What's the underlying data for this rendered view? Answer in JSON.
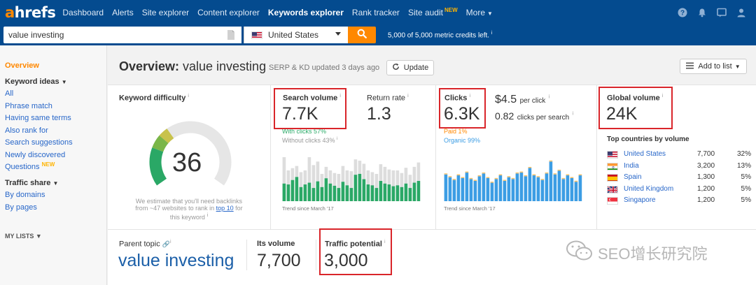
{
  "nav": {
    "logo_a": "a",
    "logo_rest": "hrefs",
    "items": [
      {
        "label": "Dashboard"
      },
      {
        "label": "Alerts"
      },
      {
        "label": "Site explorer"
      },
      {
        "label": "Content explorer"
      },
      {
        "label": "Keywords explorer",
        "active": true
      },
      {
        "label": "Rank tracker"
      },
      {
        "label": "Site audit",
        "badge": "NEW"
      },
      {
        "label": "More"
      }
    ],
    "icons": [
      "help-icon",
      "bell-icon",
      "chat-icon",
      "account-icon"
    ]
  },
  "search": {
    "value": "value investing",
    "country": "United States",
    "credits": "5,000 of 5,000 metric credits left.",
    "credits_info": "i"
  },
  "sidebar": {
    "overview": "Overview",
    "keyword_ideas": "Keyword ideas",
    "ideas": [
      "All",
      "Phrase match",
      "Having same terms",
      "Also rank for",
      "Search suggestions",
      "Newly discovered"
    ],
    "questions": "Questions",
    "questions_badge": "NEW",
    "traffic_share": "Traffic share",
    "traffic": [
      "By domains",
      "By pages"
    ],
    "my_lists": "MY LISTS"
  },
  "overview": {
    "title": "Overview:",
    "keyword": "value investing",
    "updated": "SERP & KD updated 3 days ago",
    "update_label": "Update",
    "add_to_list": "Add to list"
  },
  "kd": {
    "label": "Keyword difficulty",
    "info": "i",
    "value": "36",
    "value_num": 36,
    "note_1": "We estimate that you'll need backlinks",
    "note_2a": "from ~47 websites to rank in ",
    "note_link": "top 10",
    "note_2b": " for",
    "note_3": "this keyword",
    "note_info": "i"
  },
  "search_volume": {
    "label": "Search volume",
    "info": "i",
    "value": "7.7K",
    "with_clicks": "With clicks 57%",
    "without_clicks": "Without clicks 43%",
    "sub_info": "i",
    "trend": "Trend since March '17",
    "bars_clicks": [
      0.4,
      0.38,
      0.48,
      0.55,
      0.32,
      0.38,
      0.42,
      0.3,
      0.45,
      0.32,
      0.52,
      0.4,
      0.35,
      0.3,
      0.44,
      0.36,
      0.3,
      0.6,
      0.62,
      0.5,
      0.38,
      0.36,
      0.3,
      0.46,
      0.4,
      0.38,
      0.34,
      0.36,
      0.32,
      0.4,
      0.3,
      0.42,
      0.46
    ],
    "bars_total": [
      1.0,
      0.7,
      0.75,
      0.8,
      0.66,
      0.7,
      1.0,
      0.82,
      0.9,
      0.62,
      0.78,
      0.7,
      0.64,
      0.62,
      0.8,
      0.7,
      0.68,
      0.95,
      0.92,
      0.85,
      0.7,
      0.66,
      0.62,
      0.84,
      0.78,
      0.72,
      0.7,
      0.7,
      0.64,
      0.76,
      0.6,
      0.78,
      0.88
    ]
  },
  "return_rate": {
    "label": "Return rate",
    "info": "i",
    "value": "1.3"
  },
  "clicks": {
    "label": "Clicks",
    "info": "i",
    "value": "6.3K",
    "cpc": "$4.5",
    "cpc_label": "per click",
    "cpc_info": "i",
    "cps": "0.82",
    "cps_label": "clicks per search",
    "cps_info": "i",
    "paid": "Paid 1%",
    "organic": "Organic 99%",
    "trend": "Trend since March '17",
    "bars": [
      0.58,
      0.52,
      0.46,
      0.56,
      0.5,
      0.62,
      0.48,
      0.44,
      0.54,
      0.6,
      0.5,
      0.4,
      0.48,
      0.56,
      0.44,
      0.52,
      0.48,
      0.6,
      0.62,
      0.54,
      0.72,
      0.56,
      0.52,
      0.46,
      0.6,
      0.86,
      0.58,
      0.66,
      0.48,
      0.56,
      0.5,
      0.42,
      0.56
    ]
  },
  "global_volume": {
    "label": "Global volume",
    "info": "i",
    "value": "24K",
    "countries_title": "Top countries by volume",
    "countries": [
      {
        "flag": "us-flag-icon",
        "name": "United States",
        "volume": "7,700",
        "pct": "32%"
      },
      {
        "flag": "in-flag-icon",
        "name": "India",
        "volume": "3,200",
        "pct": "13%"
      },
      {
        "flag": "es-flag-icon",
        "name": "Spain",
        "volume": "1,300",
        "pct": "5%"
      },
      {
        "flag": "uk-flag-icon",
        "name": "United Kingdom",
        "volume": "1,200",
        "pct": "5%"
      },
      {
        "flag": "sg-flag-icon",
        "name": "Singapore",
        "volume": "1,200",
        "pct": "5%"
      }
    ]
  },
  "bottom": {
    "parent_topic_label": "Parent topic",
    "parent_topic_value": "value investing",
    "info": "i",
    "its_volume_label": "Its volume",
    "its_volume_value": "7,700",
    "traffic_potential_label": "Traffic potential",
    "traffic_potential_info": "i",
    "traffic_potential_value": "3,000"
  },
  "watermark": "SEO增长研究院",
  "colors": {
    "nav_bg": "#044b8f",
    "accent": "#ff8800",
    "link": "#2867c9",
    "bar_green": "#2aa866",
    "bar_blue": "#3c9de4",
    "highlight": "#d9252a"
  }
}
